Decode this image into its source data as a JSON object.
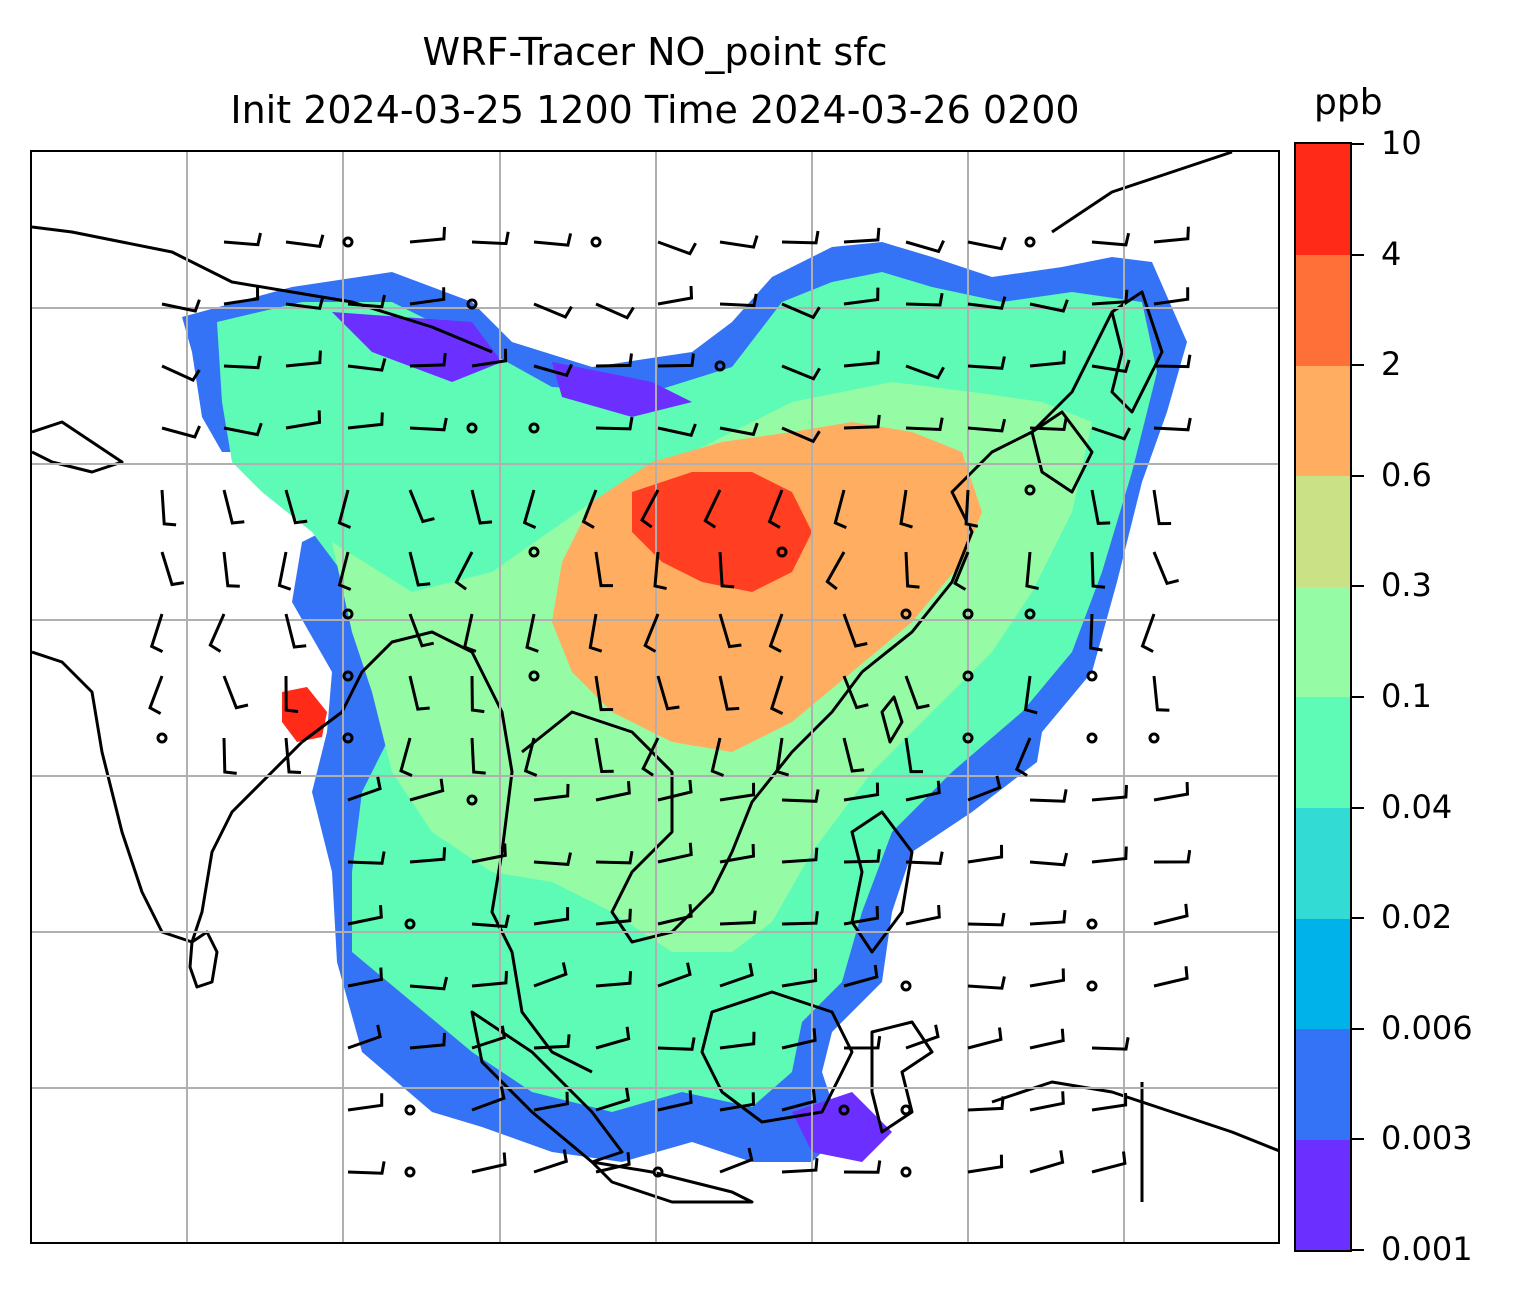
{
  "title": {
    "line1": "WRF-Tracer NO_point sfc",
    "line2": "Init 2024-03-25 1200 Time 2024-03-26 0200"
  },
  "colorbar": {
    "unit": "ppb",
    "tick_labels": [
      "0.001",
      "0.003",
      "0.006",
      "0.02",
      "0.04",
      "0.1",
      "0.3",
      "0.6",
      "2",
      "4",
      "10"
    ],
    "colors": [
      "#6b30ff",
      "#3473f5",
      "#00b2ea",
      "#32dcd5",
      "#5dfbb6",
      "#95fca5",
      "#cbe185",
      "#ffad61",
      "#ff6f38",
      "#ff2a18"
    ]
  },
  "map": {
    "gridlines": true,
    "colors": {
      "gridline": "#b0b0b0",
      "coastline": "#000000",
      "barb": "#000000"
    }
  }
}
